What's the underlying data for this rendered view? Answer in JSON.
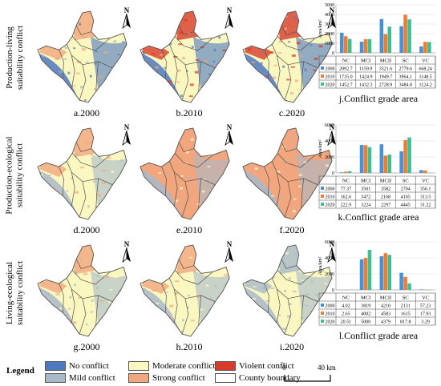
{
  "row_labels": [
    "Production-living\nsuitability conflict",
    "Production-ecological\nsuitability conflict",
    "Living-ecological\nsuitability conflict"
  ],
  "map_captions": [
    "a.2000",
    "b.2010",
    "c.2020",
    "d.2000",
    "e.2010",
    "f.2020",
    "g.2000",
    "h.2010",
    "i.2020"
  ],
  "north_label": "N",
  "colors": {
    "no_conflict": "#4d78c2",
    "mild_conflict": "#a9b9c9",
    "moderate_conflict": "#fbf7c0",
    "strong_conflict": "#f2a67d",
    "violent_conflict": "#d93b2b",
    "county_boundary": "#505050",
    "series_2000": "#4a90d9",
    "series_2010": "#ee7d31",
    "series_2020": "#3fbf91"
  },
  "legend": {
    "title": "Legend",
    "items": [
      "No conflict",
      "Mild conflict",
      "Moderate conflict",
      "Strong conflict",
      "Violent conflict",
      "County boundary"
    ]
  },
  "scale": {
    "start": "0",
    "end": "40 km"
  },
  "chart_data": [
    {
      "type": "bar",
      "title": "j.Conflict grade area",
      "ylabel": "Area/km²",
      "ylim": [
        0,
        5000
      ],
      "yticks": [
        0,
        1000,
        2000,
        3000,
        4000,
        5000
      ],
      "categories": [
        "NC",
        "MCI",
        "MCII",
        "SC",
        "VC"
      ],
      "series": [
        {
          "name": "2000",
          "values": [
            2092.7,
            1159.9,
            3521.6,
            2779.6,
            668.24
          ],
          "labels": [
            "2092.7",
            "1159.9",
            "3521.6",
            "2779.6",
            "668.24"
          ]
        },
        {
          "name": "2010",
          "values": [
            1735.0,
            1424.9,
            1949.7,
            3964.1,
            1148.5
          ],
          "labels": [
            "1735.0",
            "1424.9",
            "1949.7",
            "3964.1",
            "1148.5"
          ]
        },
        {
          "name": "2020",
          "values": [
            1452.7,
            1432.3,
            2728.9,
            3484.0,
            1124.2
          ],
          "labels": [
            "1452.7",
            "1432.3",
            "2728.9",
            "3484.0",
            "1124.2"
          ]
        }
      ]
    },
    {
      "type": "bar",
      "title": "k.Conflict grade area",
      "ylabel": "Area/km²",
      "ylim": [
        0,
        6000
      ],
      "yticks": [
        0,
        2000,
        4000,
        6000
      ],
      "categories": [
        "NC",
        "MCI",
        "MCII",
        "SC",
        "VC"
      ],
      "series": [
        {
          "name": "2000",
          "values": [
            77.37,
            3501,
            3582,
            2704,
            356.1
          ],
          "labels": [
            "77.37",
            "3501",
            "3582",
            "2704",
            "356.1"
          ]
        },
        {
          "name": "2010",
          "values": [
            162.6,
            3472,
            2168,
            4105,
            313.5
          ],
          "labels": [
            "162.6",
            "3472",
            "2168",
            "4105",
            "313.5"
          ]
        },
        {
          "name": "2020",
          "values": [
            222.9,
            3224,
            2297,
            4445,
            31.22
          ],
          "labels": [
            "222.9",
            "3224",
            "2297",
            "4445",
            "31.22"
          ]
        }
      ]
    },
    {
      "type": "bar",
      "title": "l.Conflict grade area",
      "ylabel": "Area/km²",
      "ylim": [
        0,
        6000
      ],
      "yticks": [
        0,
        2000,
        4000,
        6000
      ],
      "categories": [
        "NC",
        "MCI",
        "MCII",
        "SC",
        "VC"
      ],
      "series": [
        {
          "name": "2000",
          "values": [
            4.02,
            3819,
            4210,
            2131,
            57.23
          ],
          "labels": [
            "4.02",
            "3819",
            "4210",
            "2131",
            "57.23"
          ]
        },
        {
          "name": "2010",
          "values": [
            2.65,
            4002,
            4583,
            1615,
            17.93
          ],
          "labels": [
            "2.65",
            "4002",
            "4583",
            "1615",
            "17.93"
          ]
        },
        {
          "name": "2020",
          "values": [
            20.51,
            5000,
            4379,
            817.8,
            3.29
          ],
          "labels": [
            "20.51",
            "5000",
            "4379",
            "817.8",
            "3.29"
          ]
        }
      ]
    }
  ]
}
